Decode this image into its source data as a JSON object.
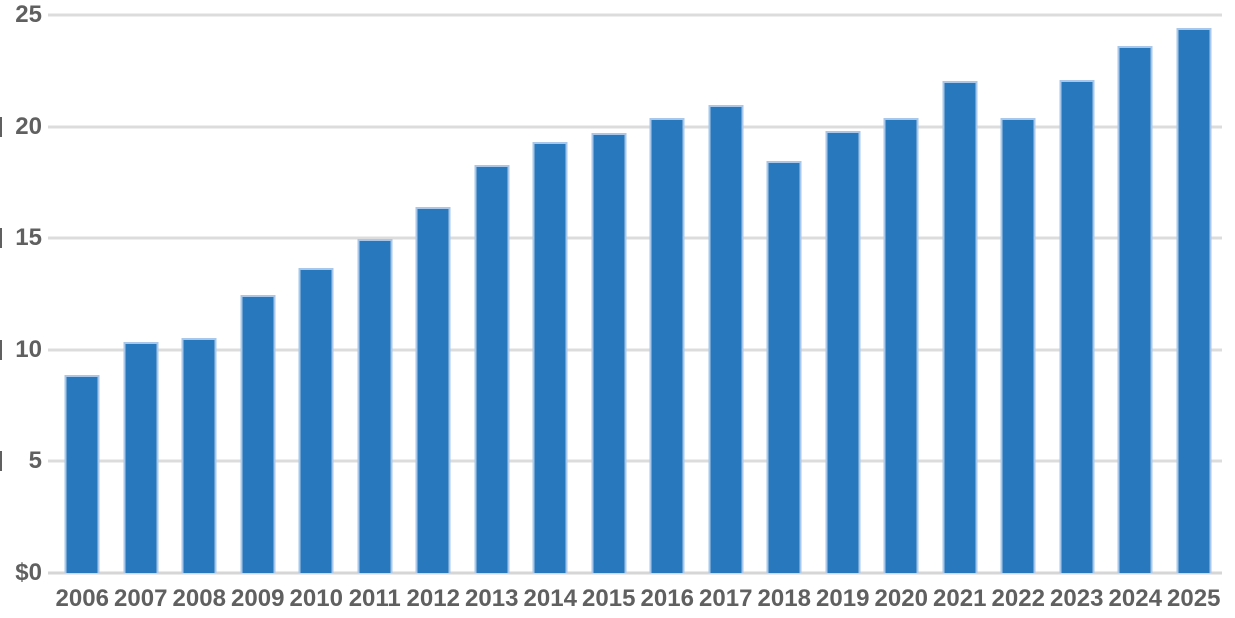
{
  "chart_data": {
    "type": "bar",
    "title": "",
    "xlabel": "",
    "ylabel": "",
    "categories": [
      "2006",
      "2007",
      "2008",
      "2009",
      "2010",
      "2011",
      "2012",
      "2013",
      "2014",
      "2015",
      "2016",
      "2017",
      "2018",
      "2019",
      "2020",
      "2021",
      "2022",
      "2023",
      "2024",
      "2025"
    ],
    "values": [
      8.85,
      10.35,
      10.55,
      12.45,
      13.65,
      14.95,
      16.4,
      18.3,
      19.3,
      19.7,
      20.4,
      20.95,
      18.45,
      19.8,
      20.4,
      22.05,
      20.4,
      22.1,
      23.6,
      24.4
    ],
    "ylim": [
      0,
      25
    ],
    "grid": true,
    "legend": false,
    "y_ticks": [
      {
        "label": "25",
        "value": 25,
        "clipped_dollar": false
      },
      {
        "label": "20",
        "value": 20,
        "clipped_dollar": true
      },
      {
        "label": "15",
        "value": 15,
        "clipped_dollar": true
      },
      {
        "label": "10",
        "value": 10,
        "clipped_dollar": true
      },
      {
        "label": "5",
        "value": 5,
        "clipped_dollar": true
      },
      {
        "label": "$0",
        "value": 0,
        "clipped_dollar": false
      }
    ],
    "colors": {
      "bar_fill": "#2878BE",
      "bar_edge": "#A9C7E8",
      "gridline": "#DCDCDC",
      "axis_line": "#D6D6D6",
      "label_text": "#606060",
      "background": "#FFFFFF"
    }
  }
}
